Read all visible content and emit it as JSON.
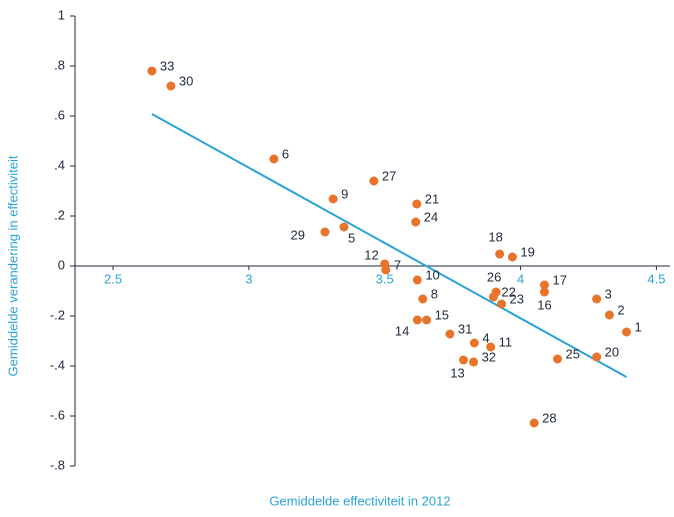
{
  "chart_data": {
    "type": "scatter",
    "xlabel": "Gemiddelde effectiviteit in 2012",
    "ylabel": "Gemiddelde verandering in effectiviteit",
    "color": "#e8732a",
    "trend_color": "#2aa3d8",
    "labels": [
      "33",
      "30",
      "6",
      "27",
      "9",
      "21",
      "24",
      "29",
      "5",
      "12",
      "7",
      "10",
      "18",
      "19",
      "17",
      "16",
      "26",
      "22",
      "23",
      "8",
      "14",
      "15",
      "31",
      "4",
      "11",
      "13",
      "32",
      "3",
      "2",
      "1",
      "20",
      "25",
      "28"
    ],
    "x": [
      2.643,
      2.713,
      3.092,
      3.46,
      3.31,
      3.618,
      3.614,
      3.28,
      3.35,
      3.5,
      3.504,
      3.62,
      3.923,
      3.97,
      4.088,
      4.088,
      3.91,
      3.9,
      3.93,
      3.64,
      3.62,
      3.654,
      3.74,
      3.83,
      3.89,
      3.79,
      3.827,
      4.28,
      4.327,
      4.39,
      4.28,
      4.136,
      4.05
    ],
    "values": [
      0.78,
      0.72,
      0.428,
      0.34,
      0.268,
      0.248,
      0.176,
      0.136,
      0.156,
      0.008,
      -0.016,
      -0.056,
      0.048,
      0.036,
      -0.076,
      -0.104,
      -0.104,
      -0.124,
      -0.152,
      -0.132,
      -0.216,
      -0.216,
      -0.272,
      -0.308,
      -0.324,
      -0.376,
      -0.384,
      -0.132,
      -0.196,
      -0.264,
      -0.364,
      -0.372,
      -0.628
    ],
    "trend": {
      "x": [
        2.643,
        4.39
      ],
      "values": [
        0.608,
        -0.444
      ]
    },
    "xlim": [
      2.36,
      4.55
    ],
    "ylim": [
      -0.8,
      1
    ],
    "xticks": [
      2.5,
      3,
      3.5,
      4,
      4.5
    ],
    "yticks": [
      1,
      {
        "value": 0.8,
        "label": ".8"
      },
      {
        "value": 0.6,
        "label": ".6"
      },
      {
        "value": 0.4,
        "label": ".4"
      },
      {
        "value": 0.2,
        "label": ".2"
      },
      0,
      {
        "value": -0.2,
        "label": "-.2"
      },
      {
        "value": -0.4,
        "label": "-.4"
      },
      {
        "value": -0.6,
        "label": "-.6"
      },
      {
        "value": -0.8,
        "label": "-.8"
      }
    ]
  }
}
